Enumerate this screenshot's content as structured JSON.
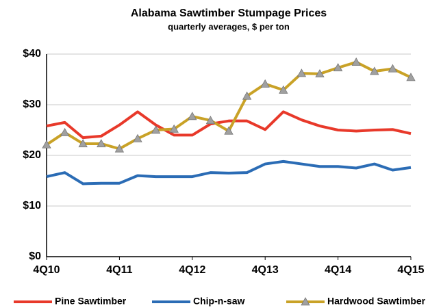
{
  "chart_data": {
    "type": "line",
    "title": "Alabama Sawtimber Stumpage Prices",
    "subtitle": "quarterly averages, $ per ton",
    "categories": [
      "4Q10",
      null,
      null,
      null,
      "4Q11",
      null,
      null,
      null,
      "4Q12",
      null,
      null,
      null,
      "4Q13",
      null,
      null,
      null,
      "4Q14",
      null,
      null,
      null,
      "4Q15"
    ],
    "series": [
      {
        "name": "Pine Sawtimber",
        "color": "#e8392a",
        "values": [
          25.8,
          26.5,
          23.5,
          23.8,
          26,
          28.6,
          26,
          24,
          24,
          26.2,
          26.8,
          26.8,
          25.1,
          28.6,
          27,
          25.8,
          25,
          24.8,
          25,
          25.1,
          24.3
        ]
      },
      {
        "name": "Chip-n-saw",
        "color": "#2b6cb5",
        "values": [
          15.8,
          16.6,
          14.4,
          14.5,
          14.5,
          16,
          15.8,
          15.8,
          15.8,
          16.6,
          16.5,
          16.6,
          18.3,
          18.8,
          18.3,
          17.8,
          17.8,
          17.5,
          18.3,
          17.1,
          17.6
        ]
      },
      {
        "name": "Hardwood Sawtimber",
        "color": "#c9a227",
        "marker_color": "#a0a0a0",
        "values": [
          22.1,
          24.5,
          22.3,
          22.3,
          21.3,
          23.3,
          25,
          25.2,
          27.7,
          26.9,
          24.8,
          31.7,
          34.1,
          32.9,
          36.2,
          36.1,
          37.3,
          38.4,
          36.6,
          37.1,
          35.4
        ]
      }
    ],
    "ylim": [
      0,
      40
    ],
    "yticks": [
      {
        "value": 0,
        "label": "$0"
      },
      {
        "value": 10,
        "label": "$10"
      },
      {
        "value": 20,
        "label": "$20"
      },
      {
        "value": 30,
        "label": "$30"
      },
      {
        "value": 40,
        "label": "$40"
      }
    ],
    "grid": true,
    "legend": "bottom"
  }
}
